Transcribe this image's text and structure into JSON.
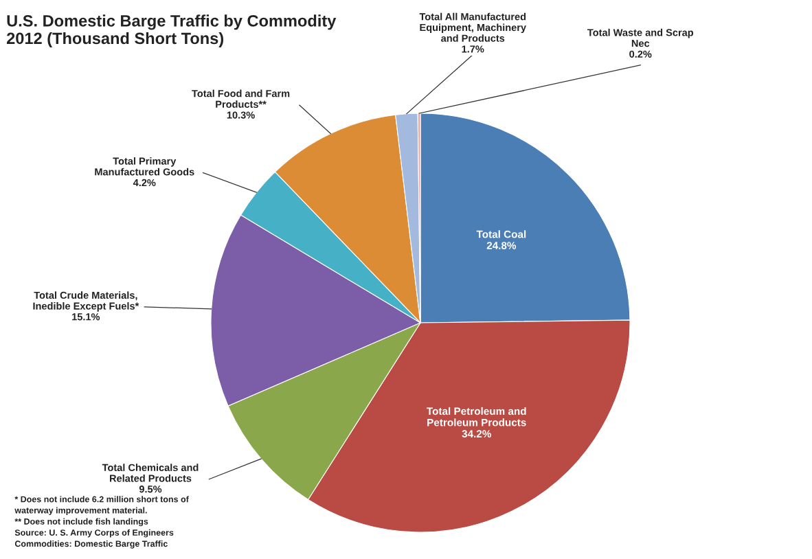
{
  "chart_data": {
    "type": "pie",
    "title": "U.S. Domestic Barge Traffic by Commodity\n2012 (Thousand Short Tons)",
    "categories": [
      "Total Coal",
      "Total Petroleum and\nPetroleum Products",
      "Total Chemicals and\nRelated Products",
      "Total Crude Materials,\nInedible Except Fuels*",
      "Total Primary\nManufactured Goods",
      "Total Food and Farm\nProducts**",
      "Total All Manufactured\nEquipment, Machinery\nand Products",
      "Total Waste and Scrap\nNec"
    ],
    "values": [
      24.8,
      34.2,
      9.5,
      15.1,
      4.2,
      10.3,
      1.7,
      0.2
    ],
    "colors": [
      "#4a7eb5",
      "#b94a44",
      "#8aa74b",
      "#7b5ea7",
      "#45b0c6",
      "#dd8c36",
      "#a3b9de",
      "#e8a9a6"
    ],
    "value_labels": [
      "24.8%",
      "34.2%",
      "9.5%",
      "15.1%",
      "4.2%",
      "10.3%",
      "1.7%",
      "0.2%"
    ],
    "annotations": [
      "* Does not include 6.2 million short tons of\nwaterway improvement material.\n** Does not include fish landings\nSource: U. S. Army Corps of Engineers\nCommodities: Domestic Barge Traffic"
    ]
  }
}
